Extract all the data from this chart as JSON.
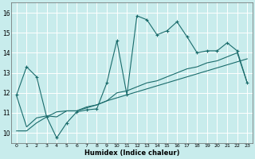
{
  "xlabel": "Humidex (Indice chaleur)",
  "bg_color": "#c8ecec",
  "grid_color": "#b0d4d4",
  "line_color": "#1a6b6b",
  "xlim": [
    -0.5,
    23.5
  ],
  "ylim": [
    9.5,
    16.5
  ],
  "xticks": [
    0,
    1,
    2,
    3,
    4,
    5,
    6,
    7,
    8,
    9,
    10,
    11,
    12,
    13,
    14,
    15,
    16,
    17,
    18,
    19,
    20,
    21,
    22,
    23
  ],
  "yticks": [
    10,
    11,
    12,
    13,
    14,
    15,
    16
  ],
  "series1_x": [
    0,
    1,
    2,
    3,
    4,
    5,
    6,
    7,
    8,
    9,
    10,
    11,
    12,
    13,
    14,
    15,
    16,
    17,
    18,
    19,
    20,
    21,
    22,
    23
  ],
  "series1_y": [
    11.9,
    13.3,
    12.8,
    10.8,
    9.75,
    10.5,
    11.05,
    11.15,
    11.2,
    12.5,
    14.6,
    11.9,
    15.85,
    15.65,
    14.9,
    15.1,
    15.55,
    14.8,
    14.0,
    14.1,
    14.1,
    14.5,
    14.1,
    12.5
  ],
  "series2_x": [
    0,
    1,
    2,
    3,
    4,
    5,
    6,
    7,
    8,
    9,
    10,
    11,
    12,
    13,
    14,
    15,
    16,
    17,
    18,
    19,
    20,
    21,
    22,
    23
  ],
  "series2_y": [
    11.85,
    10.3,
    10.75,
    10.85,
    10.8,
    11.1,
    11.1,
    11.25,
    11.4,
    11.6,
    12.0,
    12.1,
    12.3,
    12.5,
    12.6,
    12.8,
    13.0,
    13.2,
    13.3,
    13.5,
    13.6,
    13.8,
    14.0,
    12.5
  ],
  "series3_x": [
    0,
    1,
    2,
    3,
    4,
    5,
    6,
    7,
    8,
    9,
    10,
    11,
    12,
    13,
    14,
    15,
    16,
    17,
    18,
    19,
    20,
    21,
    22,
    23
  ],
  "series3_y": [
    10.1,
    10.1,
    10.5,
    10.8,
    11.05,
    11.1,
    11.1,
    11.3,
    11.4,
    11.6,
    11.75,
    11.9,
    12.05,
    12.2,
    12.35,
    12.5,
    12.65,
    12.8,
    12.95,
    13.1,
    13.25,
    13.4,
    13.55,
    13.7
  ]
}
